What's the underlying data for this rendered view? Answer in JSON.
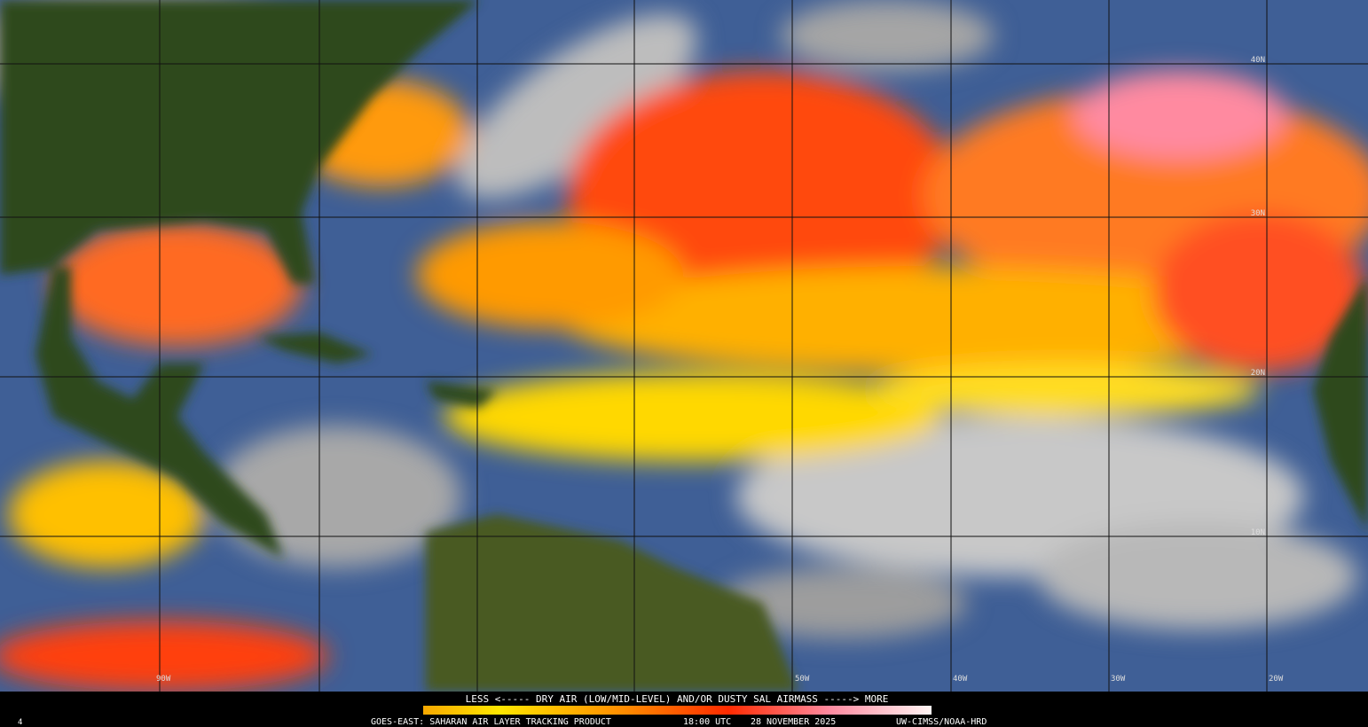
{
  "map": {
    "lat_labels": [
      "40N",
      "30N",
      "20N",
      "10N"
    ],
    "lon_labels": [
      "90W",
      "50W",
      "40W",
      "30W",
      "20W"
    ],
    "legend_text": "LESS <----- DRY AIR (LOW/MID-LEVEL) AND/OR DUSTY SAL AIRMASS -----> MORE",
    "footer": {
      "frame": "4",
      "product": "GOES-EAST: SAHARAN AIR LAYER TRACKING PRODUCT",
      "time": "18:00 UTC",
      "date": "28 NOVEMBER 2025",
      "credit": "UW-CIMSS/NOAA-HRD"
    }
  }
}
